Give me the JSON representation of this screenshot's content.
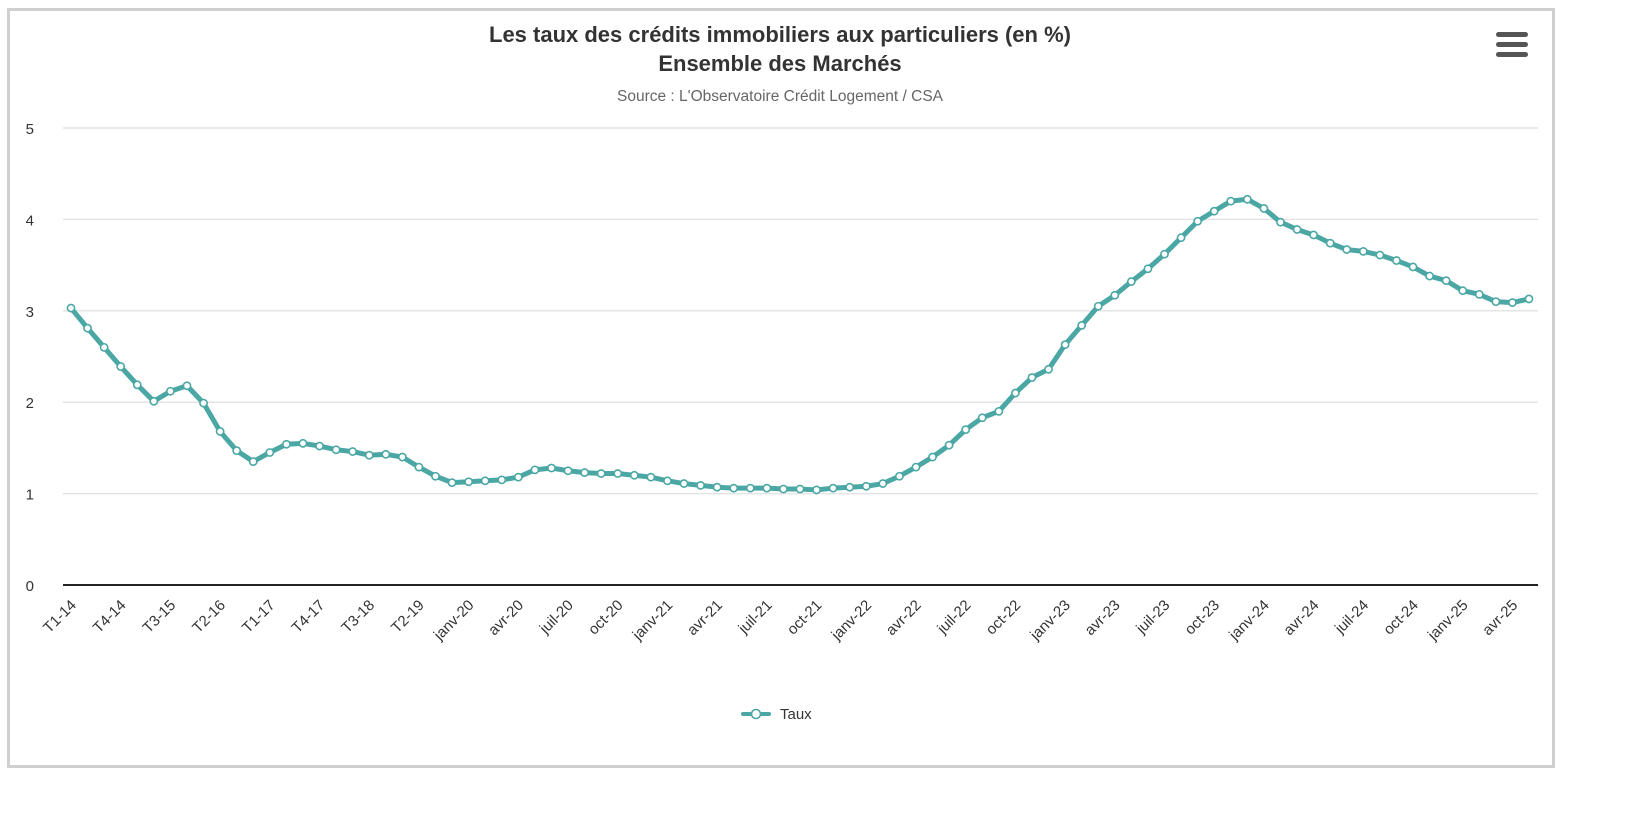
{
  "header": {
    "title_line1": "Les taux des crédits immobiliers aux particuliers (en %)",
    "title_line2": "Ensemble des Marchés",
    "subtitle": "Source : L'Observatoire Crédit Logement / CSA",
    "menu_icon": "hamburger-menu-icon"
  },
  "colors": {
    "series": "#4aa7a4",
    "grid": "#e4e4e4",
    "axis": "#222222",
    "text": "#333333"
  },
  "chart_data": {
    "type": "line",
    "title": "Les taux des crédits immobiliers aux particuliers (en %)",
    "subtitle": "Ensemble des Marchés",
    "ylim": [
      0,
      5
    ],
    "yticks": [
      0,
      1,
      2,
      3,
      4,
      5
    ],
    "grid": true,
    "legend_position": "bottom-center",
    "x_tick_labels": [
      "T1-14",
      "T4-14",
      "T3-15",
      "T2-16",
      "T1-17",
      "T4-17",
      "T3-18",
      "T2-19",
      "janv-20",
      "avr-20",
      "juil-20",
      "oct-20",
      "janv-21",
      "avr-21",
      "juil-21",
      "oct-21",
      "janv-22",
      "avr-22",
      "juil-22",
      "oct-22",
      "janv-23",
      "avr-23",
      "juil-23",
      "oct-23",
      "janv-24",
      "avr-24",
      "juil-24",
      "oct-24",
      "janv-25",
      "avr-25"
    ],
    "x_tick_indices": [
      0,
      3,
      6,
      9,
      12,
      15,
      18,
      21,
      24,
      27,
      30,
      33,
      36,
      39,
      42,
      45,
      48,
      51,
      54,
      57,
      60,
      63,
      66,
      69,
      72,
      75,
      78,
      81,
      84,
      87
    ],
    "series": [
      {
        "name": "Taux",
        "values": [
          3.03,
          2.81,
          2.6,
          2.39,
          2.19,
          2.01,
          2.12,
          2.18,
          1.99,
          1.68,
          1.47,
          1.35,
          1.45,
          1.54,
          1.55,
          1.52,
          1.48,
          1.46,
          1.42,
          1.43,
          1.4,
          1.29,
          1.19,
          1.12,
          1.13,
          1.14,
          1.15,
          1.18,
          1.26,
          1.28,
          1.25,
          1.23,
          1.22,
          1.22,
          1.2,
          1.18,
          1.14,
          1.11,
          1.09,
          1.07,
          1.06,
          1.06,
          1.06,
          1.05,
          1.05,
          1.04,
          1.06,
          1.07,
          1.08,
          1.11,
          1.19,
          1.29,
          1.4,
          1.53,
          1.7,
          1.83,
          1.9,
          2.1,
          2.27,
          2.36,
          2.63,
          2.84,
          3.05,
          3.17,
          3.32,
          3.46,
          3.62,
          3.8,
          3.98,
          4.09,
          4.2,
          4.22,
          4.12,
          3.97,
          3.89,
          3.83,
          3.74,
          3.67,
          3.65,
          3.61,
          3.55,
          3.48,
          3.38,
          3.33,
          3.22,
          3.18,
          3.1,
          3.09,
          3.13
        ]
      }
    ]
  }
}
